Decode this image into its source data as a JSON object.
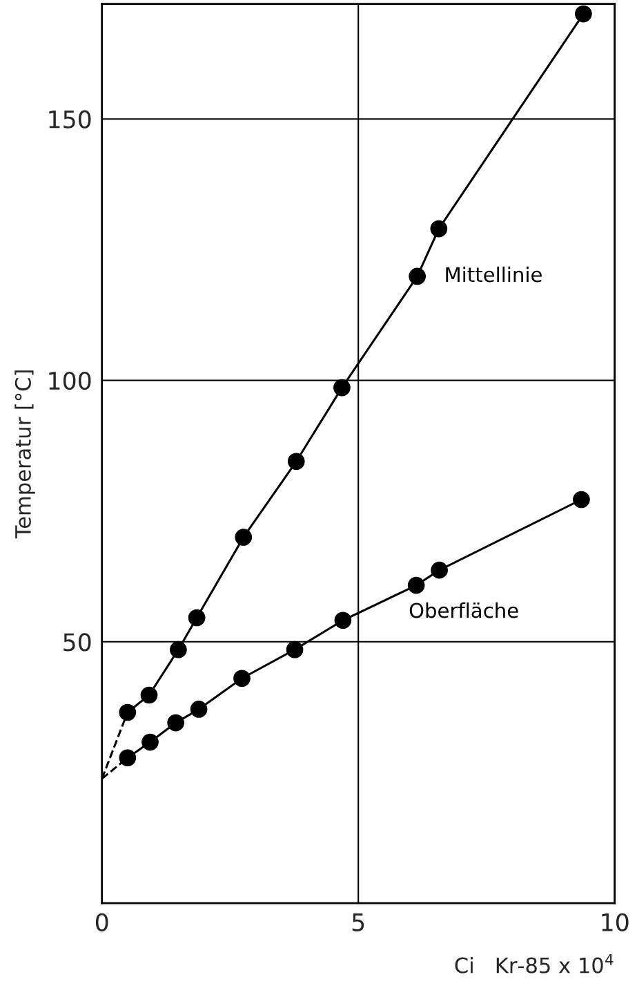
{
  "chart_data": {
    "type": "line",
    "xlabel": "Ci   Kr-85 x 10$^{4}$",
    "ylabel": "Temperatur [°C]",
    "xlim": [
      0,
      10
    ],
    "ylim": [
      0,
      172
    ],
    "xticks": [
      0,
      5,
      10
    ],
    "yticks": [
      50,
      100,
      150
    ],
    "grid": true,
    "marker": "circle",
    "series": [
      {
        "name": "Mittellinie",
        "color": "#000000",
        "x": [
          0.5,
          0.92,
          1.49,
          1.85,
          2.76,
          3.79,
          4.68,
          6.15,
          6.57,
          9.39
        ],
        "values": [
          36.5,
          39.8,
          48.5,
          54.6,
          70,
          84.5,
          98.6,
          119.9,
          129,
          170.1
        ]
      },
      {
        "name": "Oberfläche",
        "color": "#000000",
        "x": [
          0.5,
          0.94,
          1.44,
          1.89,
          2.73,
          3.76,
          4.7,
          6.13,
          6.58,
          9.35
        ],
        "values": [
          27.8,
          30.8,
          34.5,
          37.1,
          43,
          48.5,
          54.1,
          60.8,
          63.7,
          77.2
        ]
      },
      {
        "type": "line",
        "color": "#000000",
        "line_style": "dashed",
        "marker": "none",
        "x": [
          0,
          0.5
        ],
        "values": [
          23.8,
          36.5
        ]
      },
      {
        "type": "line",
        "color": "#000000",
        "line_style": "dashed",
        "marker": "none",
        "x": [
          0,
          0.5
        ],
        "values": [
          23.8,
          27.8
        ]
      }
    ]
  }
}
